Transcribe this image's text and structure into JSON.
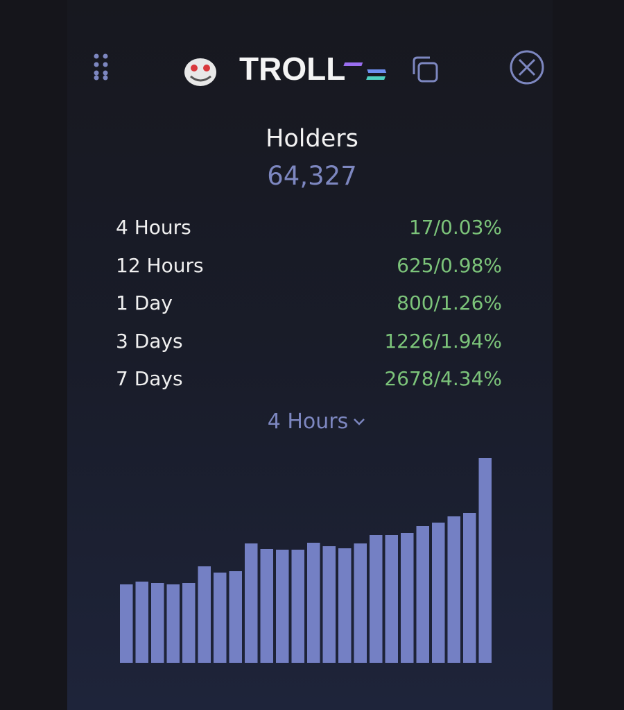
{
  "header": {
    "title": "TROLL"
  },
  "holders": {
    "label": "Holders",
    "value": "64,327"
  },
  "stats": [
    {
      "period": "4 Hours",
      "change": "17/0.03%"
    },
    {
      "period": "12 Hours",
      "change": "625/0.98%"
    },
    {
      "period": "1 Day",
      "change": "800/1.26%"
    },
    {
      "period": "3 Days",
      "change": "1226/1.94%"
    },
    {
      "period": "7 Days",
      "change": "2678/4.34%"
    }
  ],
  "selector": "4 Hours",
  "chart_data": {
    "type": "bar",
    "color": "#7480c4",
    "values": [
      113,
      117,
      115,
      113,
      115,
      139,
      130,
      132,
      172,
      164,
      163,
      163,
      173,
      168,
      165,
      172,
      184,
      184,
      187,
      197,
      202,
      211,
      216,
      295
    ]
  }
}
